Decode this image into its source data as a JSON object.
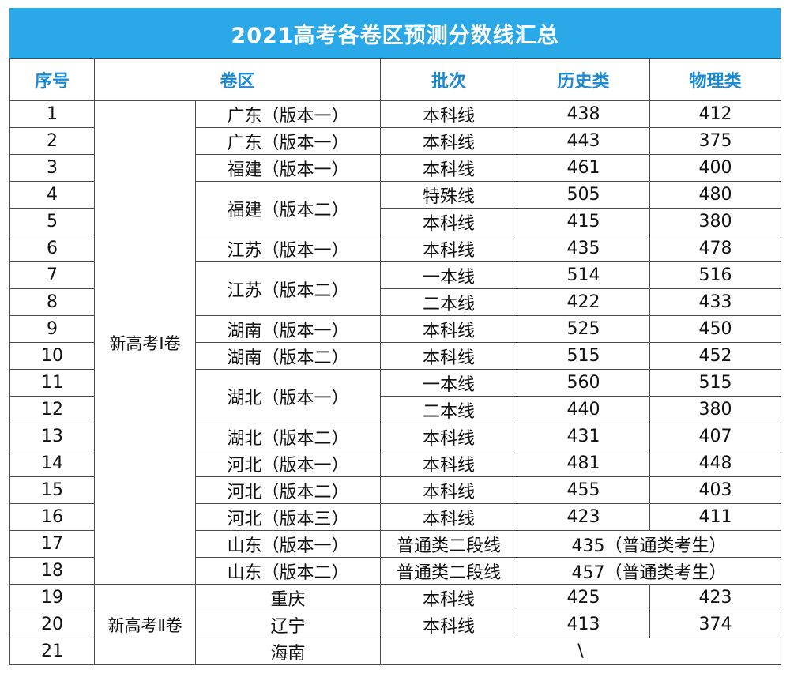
{
  "title": "2021高考各卷区预测分数线汇总",
  "headers": {
    "seq": "序号",
    "region": "卷区",
    "batch": "批次",
    "history": "历史类",
    "physics": "物理类"
  },
  "groups": {
    "new1": "新高考Ⅰ卷",
    "new2": "新高考Ⅱ卷"
  },
  "rows": [
    {
      "seq": "1",
      "area": "广东（版本一）",
      "batch": "本科线",
      "history": "438",
      "physics": "412"
    },
    {
      "seq": "2",
      "area": "广东（版本一）",
      "batch": "本科线",
      "history": "443",
      "physics": "375"
    },
    {
      "seq": "3",
      "area": "福建（版本一）",
      "batch": "本科线",
      "history": "461",
      "physics": "400"
    },
    {
      "seq": "4",
      "area": "福建（版本二）",
      "batch": "特殊线",
      "history": "505",
      "physics": "480"
    },
    {
      "seq": "5",
      "batch": "本科线",
      "history": "415",
      "physics": "380"
    },
    {
      "seq": "6",
      "area": "江苏（版本一）",
      "batch": "本科线",
      "history": "435",
      "physics": "478"
    },
    {
      "seq": "7",
      "area": "江苏（版本二）",
      "batch": "一本线",
      "history": "514",
      "physics": "516"
    },
    {
      "seq": "8",
      "batch": "二本线",
      "history": "422",
      "physics": "433"
    },
    {
      "seq": "9",
      "area": "湖南（版本一）",
      "batch": "本科线",
      "history": "525",
      "physics": "450"
    },
    {
      "seq": "10",
      "area": "湖南（版本二）",
      "batch": "本科线",
      "history": "515",
      "physics": "452"
    },
    {
      "seq": "11",
      "area": "湖北（版本一）",
      "batch": "一本线",
      "history": "560",
      "physics": "515"
    },
    {
      "seq": "12",
      "batch": "二本线",
      "history": "440",
      "physics": "380"
    },
    {
      "seq": "13",
      "area": "湖北（版本二）",
      "batch": "本科线",
      "history": "431",
      "physics": "407"
    },
    {
      "seq": "14",
      "area": "河北（版本一）",
      "batch": "本科线",
      "history": "481",
      "physics": "448"
    },
    {
      "seq": "15",
      "area": "河北（版本二）",
      "batch": "本科线",
      "history": "455",
      "physics": "403"
    },
    {
      "seq": "16",
      "area": "河北（版本三）",
      "batch": "本科线",
      "history": "423",
      "physics": "411"
    },
    {
      "seq": "17",
      "area": "山东（版本一）",
      "batch": "普通类二段线",
      "combined": "435（普通类考生）"
    },
    {
      "seq": "18",
      "area": "山东（版本二）",
      "batch": "普通类二段线",
      "combined": "457（普通类考生）"
    },
    {
      "seq": "19",
      "area": "重庆",
      "batch": "本科线",
      "history": "425",
      "physics": "423"
    },
    {
      "seq": "20",
      "area": "辽宁",
      "batch": "本科线",
      "history": "413",
      "physics": "374"
    },
    {
      "seq": "21",
      "area": "海南",
      "combined": "\\"
    }
  ]
}
